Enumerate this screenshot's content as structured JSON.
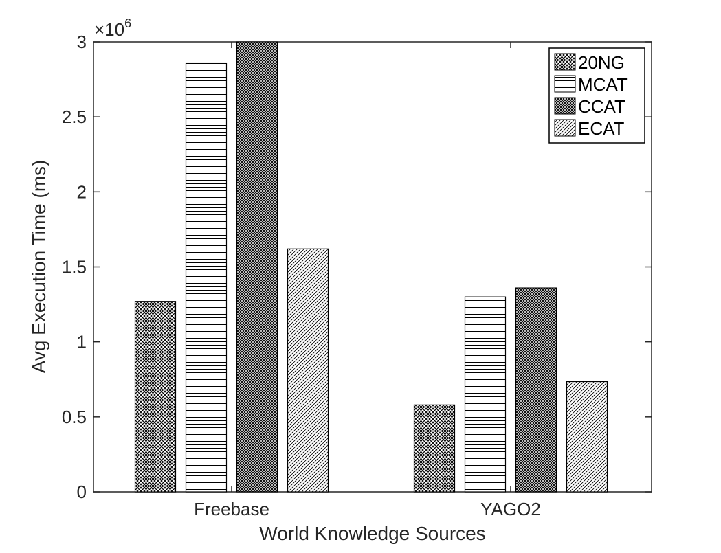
{
  "chart_data": {
    "type": "bar",
    "categories": [
      "Freebase",
      "YAGO2"
    ],
    "series": [
      {
        "name": "20NG",
        "pattern": "crosshatch-dense",
        "values": [
          1270000,
          580000
        ]
      },
      {
        "name": "MCAT",
        "pattern": "horizontal-lines",
        "values": [
          2860000,
          1300000
        ]
      },
      {
        "name": "CCAT",
        "pattern": "crosshatch-dense",
        "values": [
          3000000,
          1360000
        ]
      },
      {
        "name": "ECAT",
        "pattern": "diagonal-lines",
        "values": [
          1620000,
          735000
        ]
      }
    ],
    "title": "",
    "xlabel": "World Knowledge Sources",
    "ylabel": "Avg Execution Time (ms)",
    "ylim": [
      0,
      3000000
    ],
    "yticks": [
      0,
      500000,
      1000000,
      1500000,
      2000000,
      2500000,
      3000000
    ],
    "ytick_labels": [
      "0",
      "0.5",
      "1",
      "1.5",
      "2",
      "2.5",
      "3"
    ],
    "y_multiplier": {
      "base": "×10",
      "exponent": "6"
    },
    "grid": false,
    "legend": "top-right",
    "colors": {
      "bar_fill": "#ffffff",
      "bar_stroke": "#000000",
      "axis": "#262626"
    }
  }
}
